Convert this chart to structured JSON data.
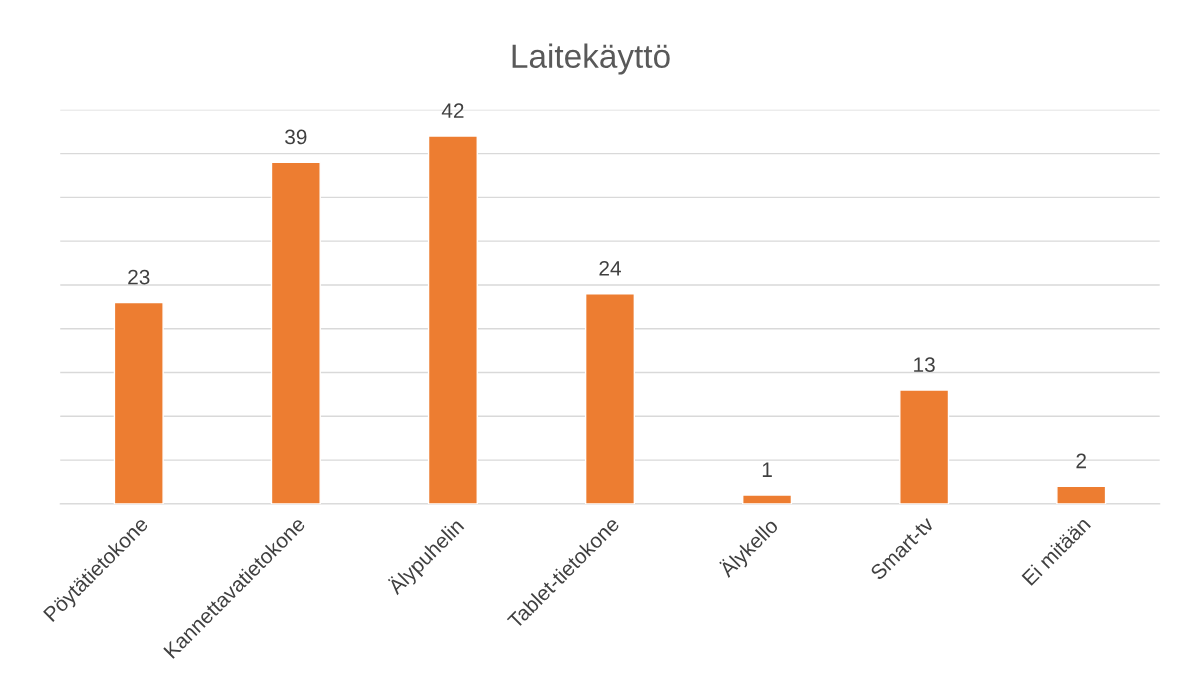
{
  "chart_data": {
    "type": "bar",
    "title": "Laitekäyttö",
    "categories": [
      "Pöytätietokone",
      "Kannettavatietokone",
      "Älypuhelin",
      "Tablet-tietokone",
      "Älykello",
      "Smart-tv",
      "Ei mitään"
    ],
    "values": [
      23,
      39,
      42,
      24,
      1,
      13,
      2
    ],
    "color": "#ed7d31",
    "ylim": [
      0,
      45
    ],
    "yticks": [
      {
        "value": 0,
        "label": null
      },
      {
        "value": 5,
        "label": null
      },
      {
        "value": 10,
        "label": null
      },
      {
        "value": 15,
        "label": null
      },
      {
        "value": 20,
        "label": null
      },
      {
        "value": 25,
        "label": null
      },
      {
        "value": 30,
        "label": null
      },
      {
        "value": 35,
        "label": null
      },
      {
        "value": 40,
        "label": null
      },
      {
        "value": 45,
        "label": null
      }
    ],
    "tick_labels": "x",
    "grid": "y",
    "data_labels": true,
    "legend": false
  }
}
